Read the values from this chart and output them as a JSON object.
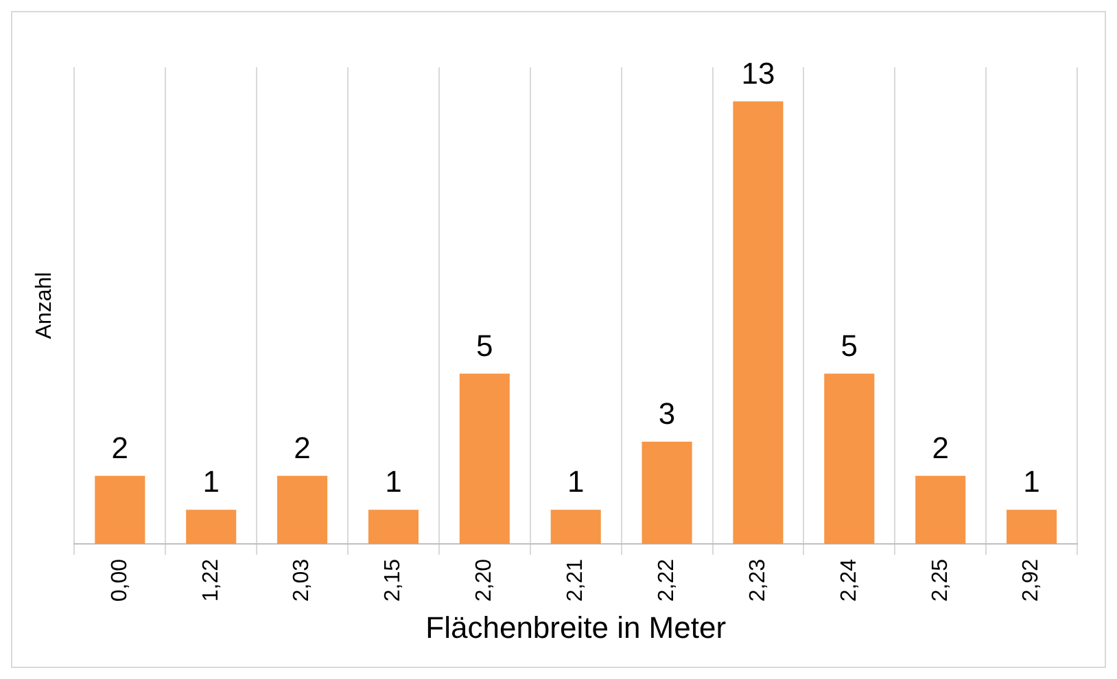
{
  "chart_data": {
    "type": "bar",
    "categories": [
      "0,00",
      "1,22",
      "2,03",
      "2,15",
      "2,20",
      "2,21",
      "2,22",
      "2,23",
      "2,24",
      "2,25",
      "2,92"
    ],
    "values": [
      2,
      1,
      2,
      1,
      5,
      1,
      3,
      13,
      5,
      2,
      1
    ],
    "color": "#f79646",
    "xlabel": "Flächenbreite in Meter",
    "ylabel": "Anzahl",
    "data_labels": true,
    "grid": "x",
    "legend": false
  }
}
